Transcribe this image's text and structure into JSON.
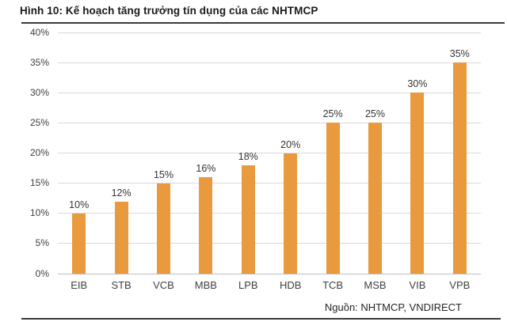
{
  "figure": {
    "title": "Hình 10: Kế hoạch tăng trưởng tín dụng của các NHTMCP",
    "source": "Nguồn: NHTMCP, VNDIRECT"
  },
  "colors": {
    "bar": "#E9993E",
    "gridline": "#D9D9D9",
    "axis_line": "#BFBFBF",
    "tick_text": "#404040",
    "rule": "#3a3a3a"
  },
  "chart_data": {
    "type": "bar",
    "title": "Hình 10: Kế hoạch tăng trưởng tín dụng của các NHTMCP",
    "categories": [
      "EIB",
      "STB",
      "VCB",
      "MBB",
      "LPB",
      "HDB",
      "TCB",
      "MSB",
      "VIB",
      "VPB"
    ],
    "values": [
      10,
      12,
      15,
      16,
      18,
      20,
      25,
      25,
      30,
      35
    ],
    "data_labels": [
      "10%",
      "12%",
      "15%",
      "16%",
      "18%",
      "20%",
      "25%",
      "25%",
      "30%",
      "35%"
    ],
    "xlabel": "",
    "ylabel": "",
    "ylim": [
      0,
      40
    ],
    "ytick_step": 5,
    "ytick_labels": [
      "0%",
      "5%",
      "10%",
      "15%",
      "20%",
      "25%",
      "30%",
      "35%",
      "40%"
    ],
    "grid": true,
    "legend": false,
    "bar_color": "#E9993E",
    "source": "Nguồn: NHTMCP, VNDIRECT"
  }
}
